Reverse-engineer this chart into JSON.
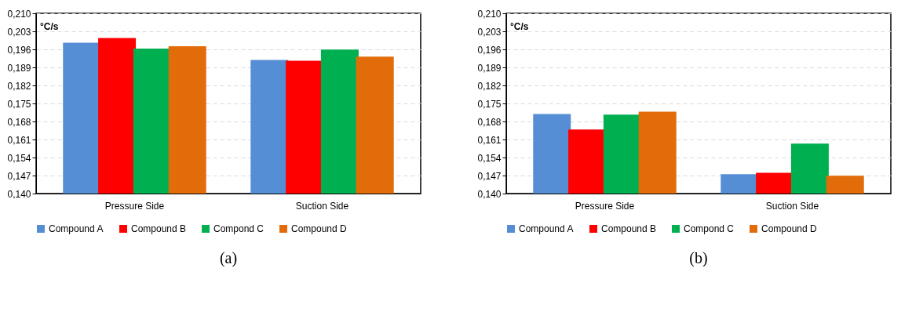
{
  "chart_data": [
    {
      "type": "bar",
      "ylabel": "°C/s",
      "categories": [
        "Pressure Side",
        "Suction Side"
      ],
      "series": [
        {
          "name": "Compound A",
          "color": "#558ed5",
          "values": [
            0.1986,
            0.1919
          ]
        },
        {
          "name": "Compound B",
          "color": "#ff0000",
          "values": [
            0.2004,
            0.1916
          ]
        },
        {
          "name": "Compond C",
          "color": "#00b050",
          "values": [
            0.1963,
            0.1959
          ]
        },
        {
          "name": "Compound D",
          "color": "#e36c0a",
          "values": [
            0.1972,
            0.1932
          ]
        }
      ],
      "ylim": [
        0.14,
        0.21
      ],
      "yticks": [
        {
          "value": 0.14,
          "label": "0,140"
        },
        {
          "value": 0.147,
          "label": "0,147"
        },
        {
          "value": 0.154,
          "label": "0,154"
        },
        {
          "value": 0.161,
          "label": "0,161"
        },
        {
          "value": 0.168,
          "label": "0,168"
        },
        {
          "value": 0.175,
          "label": "0,175"
        },
        {
          "value": 0.182,
          "label": "0,182"
        },
        {
          "value": 0.189,
          "label": "0,189"
        },
        {
          "value": 0.196,
          "label": "0,196"
        },
        {
          "value": 0.203,
          "label": "0,203"
        },
        {
          "value": 0.21,
          "label": "0,210"
        }
      ],
      "grid": "y",
      "legend": "bottom",
      "annotations": [
        "(a)"
      ]
    },
    {
      "type": "bar",
      "ylabel": "°C/s",
      "categories": [
        "Pressure Side",
        "Suction Side"
      ],
      "series": [
        {
          "name": "Compound A",
          "color": "#558ed5",
          "values": [
            0.1709,
            0.1475
          ]
        },
        {
          "name": "Compound B",
          "color": "#ff0000",
          "values": [
            0.1649,
            0.1481
          ]
        },
        {
          "name": "Compond C",
          "color": "#00b050",
          "values": [
            0.1707,
            0.1594
          ]
        },
        {
          "name": "Compound D",
          "color": "#e36c0a",
          "values": [
            0.1718,
            0.1469
          ]
        }
      ],
      "ylim": [
        0.14,
        0.21
      ],
      "yticks": [
        {
          "value": 0.14,
          "label": "0,140"
        },
        {
          "value": 0.147,
          "label": "0,147"
        },
        {
          "value": 0.154,
          "label": "0,154"
        },
        {
          "value": 0.161,
          "label": "0,161"
        },
        {
          "value": 0.168,
          "label": "0,168"
        },
        {
          "value": 0.175,
          "label": "0,175"
        },
        {
          "value": 0.182,
          "label": "0,182"
        },
        {
          "value": 0.189,
          "label": "0,189"
        },
        {
          "value": 0.196,
          "label": "0,196"
        },
        {
          "value": 0.203,
          "label": "0,203"
        },
        {
          "value": 0.21,
          "label": "0,210"
        }
      ],
      "grid": "y",
      "legend": "bottom",
      "annotations": [
        "(b)"
      ]
    }
  ]
}
